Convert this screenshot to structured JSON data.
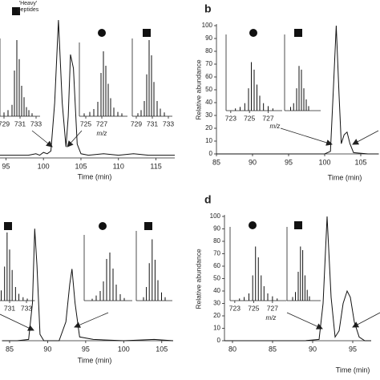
{
  "chart_data": [
    {
      "type": "line",
      "x_label": "Time (min)",
      "xlim": [
        94,
        117.5
      ],
      "xticks": [
        95,
        100,
        105,
        110,
        115
      ],
      "ylim": [
        0,
        100
      ],
      "x": [
        94,
        96,
        98,
        99,
        99.5,
        100,
        100.5,
        101,
        101.5,
        102,
        102.5,
        103,
        103.3,
        103.6,
        104,
        104.5,
        105,
        106,
        108,
        110,
        112,
        114,
        117.5
      ],
      "values": [
        2,
        2,
        2,
        3,
        2,
        4,
        3,
        5,
        40,
        100,
        40,
        8,
        30,
        75,
        65,
        10,
        3,
        2,
        3,
        2,
        3,
        2,
        2
      ]
    },
    {
      "type": "stick",
      "title_lines": [
        "'Heavy'",
        "peptides"
      ],
      "xlim": [
        728.5,
        733.5
      ],
      "xticks": [
        729,
        731,
        733
      ],
      "ylim": [
        0,
        100
      ],
      "x": [
        729.0,
        729.5,
        730.0,
        730.3,
        730.6,
        730.9,
        731.2,
        731.5,
        731.8,
        732.1,
        732.5
      ],
      "values": [
        5,
        8,
        15,
        60,
        100,
        75,
        40,
        25,
        12,
        8,
        4
      ]
    },
    {
      "type": "stick",
      "x_label": "m/z",
      "xlim": [
        724.2,
        730.2
      ],
      "xticks": [
        725,
        727
      ],
      "ylim": [
        0,
        100
      ],
      "x": [
        724.8,
        725.5,
        726.0,
        726.5,
        726.9,
        727.2,
        727.5,
        727.8,
        728.1,
        728.5,
        729.0,
        729.5
      ],
      "values": [
        4,
        6,
        10,
        20,
        60,
        90,
        70,
        45,
        25,
        12,
        6,
        4
      ]
    },
    {
      "type": "stick",
      "xlim": [
        728.5,
        733.5
      ],
      "xticks": [
        729,
        731,
        733
      ],
      "ylim": [
        0,
        100
      ],
      "x": [
        729.2,
        729.6,
        730.0,
        730.3,
        730.6,
        730.9,
        731.2,
        731.6,
        732.0,
        732.5
      ],
      "values": [
        4,
        8,
        20,
        55,
        100,
        80,
        45,
        20,
        10,
        5
      ]
    },
    {
      "type": "line",
      "panel": "b",
      "x_label": "Time (min)",
      "y_label": "Relative abundance",
      "xlim": [
        85,
        107.5
      ],
      "xticks": [
        85,
        90,
        95,
        100,
        105
      ],
      "ylim": [
        0,
        100
      ],
      "yticks": [
        0,
        10,
        20,
        30,
        40,
        50,
        60,
        70,
        80,
        90,
        100
      ],
      "x": [
        85,
        90,
        95,
        98,
        100,
        100.8,
        101.2,
        101.6,
        102.0,
        102.3,
        102.7,
        103.1,
        103.5,
        104,
        106,
        107.5
      ],
      "values": [
        0,
        0,
        0,
        0,
        0,
        2,
        50,
        100,
        45,
        8,
        15,
        17,
        8,
        1,
        0,
        0
      ]
    },
    {
      "type": "stick",
      "x_label": "m/z",
      "xlim": [
        722.5,
        728.5
      ],
      "xticks": [
        723,
        725,
        727
      ],
      "ylim": [
        0,
        100
      ],
      "x": [
        723.5,
        724.0,
        724.5,
        724.9,
        725.2,
        725.5,
        725.8,
        726.1,
        726.5,
        727.0,
        727.5
      ],
      "values": [
        3,
        5,
        10,
        30,
        65,
        55,
        35,
        20,
        10,
        6,
        3
      ]
    },
    {
      "type": "stick",
      "xlim": [
        729,
        735
      ],
      "ylim": [
        0,
        100
      ],
      "x": [
        730,
        730.5,
        731,
        731.4,
        731.8,
        732.2,
        732.6,
        733
      ],
      "values": [
        5,
        10,
        30,
        60,
        55,
        30,
        15,
        6
      ]
    },
    {
      "type": "line",
      "x_label": "Time (min)",
      "xlim": [
        84,
        106.5
      ],
      "xticks": [
        85,
        90,
        95,
        100,
        105
      ],
      "ylim": [
        0,
        100
      ],
      "x": [
        84,
        86,
        87.5,
        88.0,
        88.3,
        88.6,
        89.0,
        89.5,
        90.5,
        91.5,
        92.4,
        92.9,
        93.2,
        93.6,
        94.2,
        96,
        100,
        104,
        106.5
      ],
      "values": [
        0,
        0,
        1,
        30,
        89,
        60,
        5,
        0,
        0,
        0,
        15,
        45,
        57,
        30,
        3,
        1,
        0,
        1,
        0
      ]
    },
    {
      "type": "stick",
      "xlim": [
        729,
        734
      ],
      "xticks": [
        731,
        733
      ],
      "ylim": [
        0,
        100
      ],
      "x": [
        729.5,
        730,
        730.4,
        730.7,
        731.0,
        731.3,
        731.7,
        732.1,
        732.6,
        733.1
      ],
      "values": [
        5,
        15,
        50,
        100,
        75,
        45,
        20,
        10,
        5,
        3
      ]
    },
    {
      "type": "stick",
      "xlim": [
        724,
        730
      ],
      "ylim": [
        0,
        100
      ],
      "x": [
        725,
        725.5,
        726,
        726.4,
        726.8,
        727.2,
        727.6,
        728,
        728.5,
        729
      ],
      "values": [
        3,
        8,
        15,
        30,
        65,
        75,
        50,
        25,
        10,
        4
      ]
    },
    {
      "type": "stick",
      "xlim": [
        729,
        734
      ],
      "ylim": [
        0,
        100
      ],
      "x": [
        730,
        730.4,
        730.8,
        731.2,
        731.6,
        732,
        732.5,
        733
      ],
      "values": [
        5,
        20,
        55,
        90,
        60,
        30,
        12,
        5
      ]
    },
    {
      "type": "line",
      "panel": "d",
      "x_label": "Time (min)",
      "y_label": "Relative abundance",
      "xlim": [
        79,
        97.3
      ],
      "xticks": [
        80,
        85,
        90,
        95
      ],
      "ylim": [
        0,
        100
      ],
      "yticks": [
        0,
        10,
        20,
        30,
        40,
        50,
        60,
        70,
        80,
        90,
        100
      ],
      "x": [
        79,
        85,
        89,
        90.8,
        91.3,
        91.8,
        92.3,
        92.8,
        93.3,
        93.8,
        94.3,
        94.7,
        95.2,
        95.8,
        96.5,
        97.3
      ],
      "values": [
        0,
        0,
        0,
        1,
        30,
        100,
        35,
        3,
        8,
        30,
        40,
        35,
        15,
        3,
        0,
        0
      ]
    },
    {
      "type": "stick",
      "x_label": "m/z",
      "xlim": [
        722.5,
        728.5
      ],
      "xticks": [
        723,
        725,
        727
      ],
      "ylim": [
        0,
        100
      ],
      "x": [
        723.5,
        724,
        724.5,
        724.9,
        725.2,
        725.5,
        725.8,
        726.1,
        726.5,
        727,
        727.5
      ],
      "values": [
        3,
        5,
        10,
        35,
        75,
        60,
        35,
        20,
        10,
        6,
        3
      ]
    },
    {
      "type": "stick",
      "xlim": [
        729,
        735
      ],
      "ylim": [
        0,
        100
      ],
      "x": [
        730,
        730.5,
        731,
        731.4,
        731.8,
        732.2,
        732.6,
        733
      ],
      "values": [
        5,
        12,
        40,
        75,
        70,
        35,
        15,
        6
      ]
    }
  ]
}
